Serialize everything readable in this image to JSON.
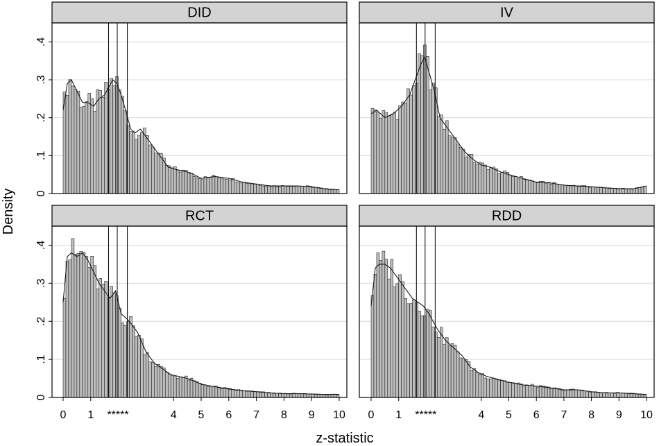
{
  "chart_data": {
    "type": "histogram",
    "xlabel": "z-statistic",
    "ylabel": "Density",
    "xlim": [
      0,
      10
    ],
    "ylim": [
      0,
      0.45
    ],
    "yticks": [
      0,
      0.1,
      0.2,
      0.3,
      0.4
    ],
    "ytick_labels": [
      "0",
      ".1",
      ".2",
      ".3",
      ".4"
    ],
    "xticks": [
      0,
      1,
      4,
      5,
      6,
      7,
      8,
      9,
      10
    ],
    "xtick_labels": [
      "0",
      "1",
      "4",
      "5",
      "6",
      "7",
      "8",
      "9",
      "10"
    ],
    "significance_lines": [
      1.645,
      1.96,
      2.326
    ],
    "significance_label": "*****",
    "bin_width": 0.1,
    "panels": [
      {
        "title": "DID",
        "density_points": [
          [
            0,
            0.22
          ],
          [
            0.15,
            0.29
          ],
          [
            0.3,
            0.3
          ],
          [
            0.5,
            0.27
          ],
          [
            0.7,
            0.24
          ],
          [
            0.9,
            0.24
          ],
          [
            1.1,
            0.23
          ],
          [
            1.3,
            0.25
          ],
          [
            1.5,
            0.26
          ],
          [
            1.65,
            0.28
          ],
          [
            1.8,
            0.3
          ],
          [
            1.95,
            0.29
          ],
          [
            2.1,
            0.26
          ],
          [
            2.3,
            0.21
          ],
          [
            2.45,
            0.17
          ],
          [
            2.6,
            0.16
          ],
          [
            2.8,
            0.17
          ],
          [
            3.0,
            0.15
          ],
          [
            3.2,
            0.13
          ],
          [
            3.4,
            0.11
          ],
          [
            3.6,
            0.09
          ],
          [
            3.8,
            0.07
          ],
          [
            4.0,
            0.065
          ],
          [
            4.3,
            0.06
          ],
          [
            4.6,
            0.055
          ],
          [
            5.0,
            0.04
          ],
          [
            5.5,
            0.045
          ],
          [
            6.0,
            0.04
          ],
          [
            6.5,
            0.03
          ],
          [
            7.0,
            0.025
          ],
          [
            7.5,
            0.02
          ],
          [
            8.0,
            0.02
          ],
          [
            8.5,
            0.02
          ],
          [
            9.0,
            0.018
          ],
          [
            9.5,
            0.012
          ],
          [
            10,
            0.01
          ]
        ]
      },
      {
        "title": "IV",
        "density_points": [
          [
            0,
            0.21
          ],
          [
            0.2,
            0.22
          ],
          [
            0.5,
            0.2
          ],
          [
            0.8,
            0.21
          ],
          [
            1.1,
            0.23
          ],
          [
            1.4,
            0.26
          ],
          [
            1.6,
            0.3
          ],
          [
            1.8,
            0.34
          ],
          [
            1.95,
            0.36
          ],
          [
            2.1,
            0.32
          ],
          [
            2.3,
            0.27
          ],
          [
            2.5,
            0.2
          ],
          [
            2.8,
            0.17
          ],
          [
            3.1,
            0.14
          ],
          [
            3.4,
            0.11
          ],
          [
            3.7,
            0.09
          ],
          [
            4.0,
            0.075
          ],
          [
            4.3,
            0.07
          ],
          [
            4.6,
            0.06
          ],
          [
            5.0,
            0.05
          ],
          [
            5.5,
            0.04
          ],
          [
            6.0,
            0.03
          ],
          [
            6.5,
            0.028
          ],
          [
            7.0,
            0.022
          ],
          [
            7.5,
            0.02
          ],
          [
            8.0,
            0.018
          ],
          [
            8.5,
            0.015
          ],
          [
            9.0,
            0.013
          ],
          [
            9.5,
            0.012
          ],
          [
            10,
            0.02
          ]
        ]
      },
      {
        "title": "RCT",
        "density_points": [
          [
            0,
            0.25
          ],
          [
            0.15,
            0.37
          ],
          [
            0.3,
            0.38
          ],
          [
            0.5,
            0.37
          ],
          [
            0.7,
            0.38
          ],
          [
            0.9,
            0.36
          ],
          [
            1.1,
            0.33
          ],
          [
            1.3,
            0.3
          ],
          [
            1.5,
            0.28
          ],
          [
            1.7,
            0.26
          ],
          [
            1.9,
            0.28
          ],
          [
            2.1,
            0.22
          ],
          [
            2.4,
            0.2
          ],
          [
            2.7,
            0.17
          ],
          [
            3.0,
            0.12
          ],
          [
            3.3,
            0.09
          ],
          [
            3.6,
            0.075
          ],
          [
            3.9,
            0.06
          ],
          [
            4.2,
            0.055
          ],
          [
            4.5,
            0.05
          ],
          [
            5.0,
            0.035
          ],
          [
            5.5,
            0.028
          ],
          [
            6.0,
            0.022
          ],
          [
            6.5,
            0.018
          ],
          [
            7.0,
            0.015
          ],
          [
            7.5,
            0.012
          ],
          [
            8.0,
            0.01
          ],
          [
            8.5,
            0.01
          ],
          [
            9.0,
            0.009
          ],
          [
            9.5,
            0.008
          ],
          [
            10,
            0.008
          ]
        ]
      },
      {
        "title": "RDD",
        "density_points": [
          [
            0,
            0.24
          ],
          [
            0.15,
            0.34
          ],
          [
            0.3,
            0.35
          ],
          [
            0.5,
            0.35
          ],
          [
            0.7,
            0.34
          ],
          [
            0.9,
            0.32
          ],
          [
            1.1,
            0.3
          ],
          [
            1.3,
            0.28
          ],
          [
            1.5,
            0.26
          ],
          [
            1.7,
            0.25
          ],
          [
            1.9,
            0.24
          ],
          [
            2.1,
            0.22
          ],
          [
            2.4,
            0.18
          ],
          [
            2.7,
            0.15
          ],
          [
            3.0,
            0.13
          ],
          [
            3.3,
            0.11
          ],
          [
            3.6,
            0.08
          ],
          [
            3.9,
            0.065
          ],
          [
            4.2,
            0.055
          ],
          [
            4.5,
            0.05
          ],
          [
            5.0,
            0.04
          ],
          [
            5.5,
            0.033
          ],
          [
            6.0,
            0.03
          ],
          [
            6.5,
            0.025
          ],
          [
            7.0,
            0.02
          ],
          [
            7.5,
            0.02
          ],
          [
            8.0,
            0.015
          ],
          [
            8.5,
            0.012
          ],
          [
            9.0,
            0.012
          ],
          [
            9.5,
            0.01
          ],
          [
            10,
            0.008
          ]
        ]
      }
    ]
  }
}
